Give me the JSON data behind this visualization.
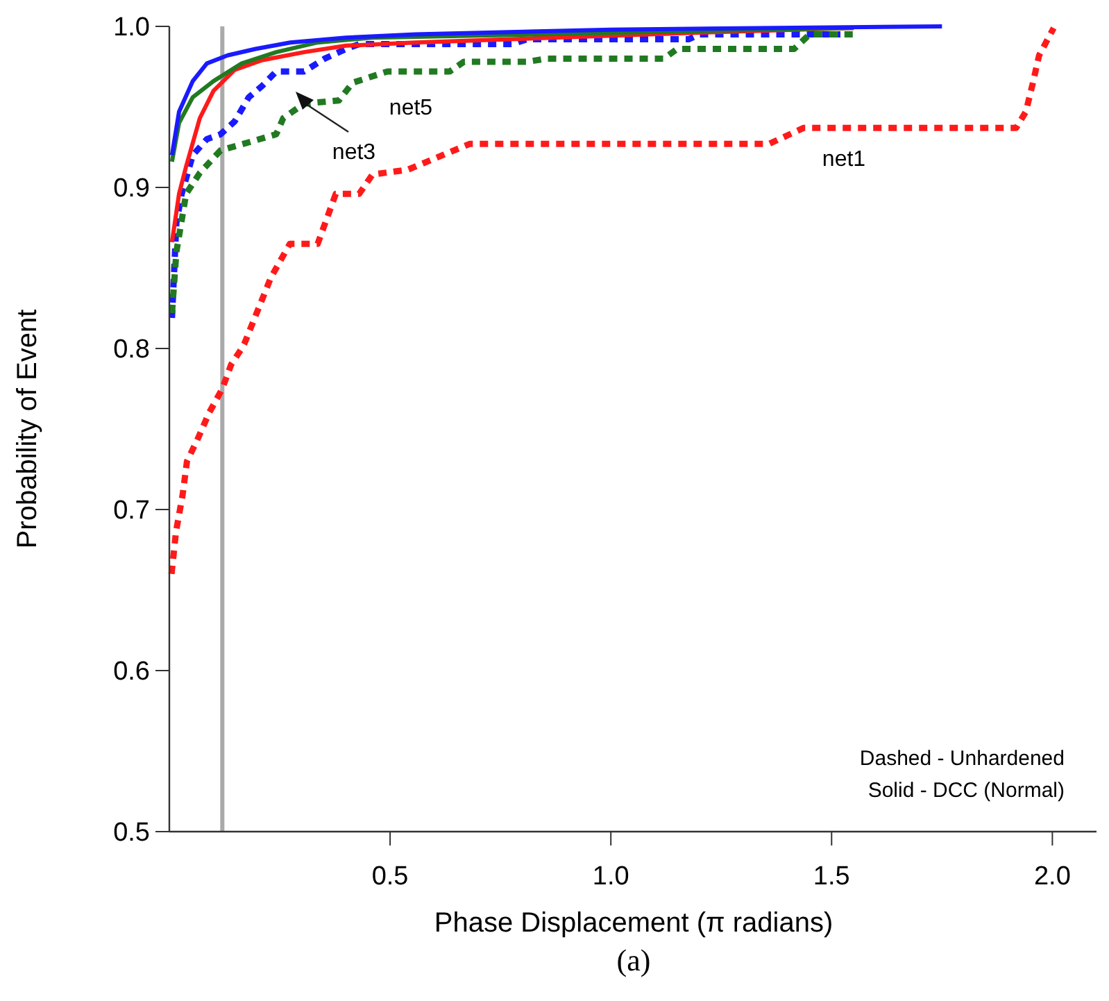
{
  "chart_data": {
    "type": "line",
    "xlabel": "Phase Displacement (π radians)",
    "ylabel": "Probability of Event",
    "xlim": [
      0,
      2.1
    ],
    "ylim": [
      0.5,
      1.0
    ],
    "xticks": [
      0.5,
      {
        "value": 1,
        "label": "1.0"
      },
      1.5,
      {
        "value": 2,
        "label": "2.0"
      }
    ],
    "yticks": [
      0.5,
      0.6,
      0.7,
      0.8,
      0.9,
      {
        "value": 1,
        "label": "1.0"
      }
    ],
    "grid": false,
    "marker": "none",
    "series": [
      {
        "color": "#ff1a1a",
        "line_style": "dotted",
        "x": [
          0.005,
          0.015,
          0.03,
          0.04,
          0.063,
          0.09,
          0.12,
          0.14,
          0.164,
          0.17,
          0.23,
          0.273,
          0.336,
          0.377,
          0.43,
          0.46,
          0.54,
          0.68,
          0.71,
          1.358,
          1.437,
          1.918,
          1.94,
          1.956,
          1.97,
          2.003
        ],
        "values": [
          0.66,
          0.686,
          0.709,
          0.73,
          0.743,
          0.76,
          0.775,
          0.79,
          0.8,
          0.803,
          0.844,
          0.865,
          0.865,
          0.896,
          0.896,
          0.908,
          0.911,
          0.927,
          0.927,
          0.927,
          0.937,
          0.937,
          0.947,
          0.965,
          0.982,
          0.999
        ]
      },
      {
        "color": "#1a1aff",
        "line_style": "dotted",
        "x": [
          0.006,
          0.016,
          0.028,
          0.053,
          0.085,
          0.116,
          0.148,
          0.18,
          0.21,
          0.242,
          0.305,
          0.352,
          0.4,
          0.43,
          0.777,
          0.81,
          1.176,
          1.2,
          1.52
        ],
        "values": [
          0.819,
          0.878,
          0.896,
          0.92,
          0.93,
          0.933,
          0.941,
          0.956,
          0.963,
          0.972,
          0.972,
          0.98,
          0.986,
          0.989,
          0.989,
          0.992,
          0.992,
          0.995,
          0.995
        ]
      },
      {
        "color": "#217a21",
        "line_style": "dotted",
        "x": [
          0.006,
          0.016,
          0.038,
          0.069,
          0.116,
          0.18,
          0.242,
          0.258,
          0.305,
          0.384,
          0.415,
          0.494,
          0.635,
          0.667,
          0.81,
          0.855,
          1.12,
          1.15,
          1.415,
          1.45,
          1.55
        ],
        "values": [
          0.822,
          0.86,
          0.896,
          0.909,
          0.923,
          0.928,
          0.933,
          0.943,
          0.952,
          0.954,
          0.965,
          0.972,
          0.972,
          0.978,
          0.978,
          0.98,
          0.98,
          0.986,
          0.986,
          0.995,
          0.995
        ]
      },
      {
        "color": "#ff1a1a",
        "line_style": "solid",
        "x": [
          0.006,
          0.022,
          0.038,
          0.069,
          0.1,
          0.148,
          0.21,
          0.305,
          0.4,
          0.557,
          0.87,
          1.19,
          1.55
        ],
        "values": [
          0.866,
          0.896,
          0.913,
          0.943,
          0.96,
          0.973,
          0.979,
          0.984,
          0.988,
          0.99,
          0.993,
          0.996,
          0.999
        ]
      },
      {
        "color": "#217a21",
        "line_style": "solid",
        "x": [
          0.006,
          0.022,
          0.053,
          0.1,
          0.164,
          0.242,
          0.336,
          0.46,
          1.55
        ],
        "values": [
          0.916,
          0.94,
          0.956,
          0.966,
          0.977,
          0.984,
          0.99,
          0.993,
          0.999
        ]
      },
      {
        "color": "#1a1aff",
        "line_style": "solid",
        "x": [
          0.006,
          0.022,
          0.053,
          0.085,
          0.132,
          0.195,
          0.274,
          0.4,
          0.557,
          1.0,
          1.75
        ],
        "values": [
          0.92,
          0.947,
          0.966,
          0.977,
          0.982,
          0.986,
          0.99,
          0.993,
          0.995,
          0.998,
          1.0
        ]
      }
    ],
    "ref_lines": [
      {
        "axis": "x",
        "value": 0.12,
        "color": "#aaaaaa"
      }
    ],
    "annotations": [
      "net5",
      "net3",
      "net1",
      "Dashed - Unhardened",
      "Solid - DCC (Normal)",
      "(a)"
    ]
  }
}
